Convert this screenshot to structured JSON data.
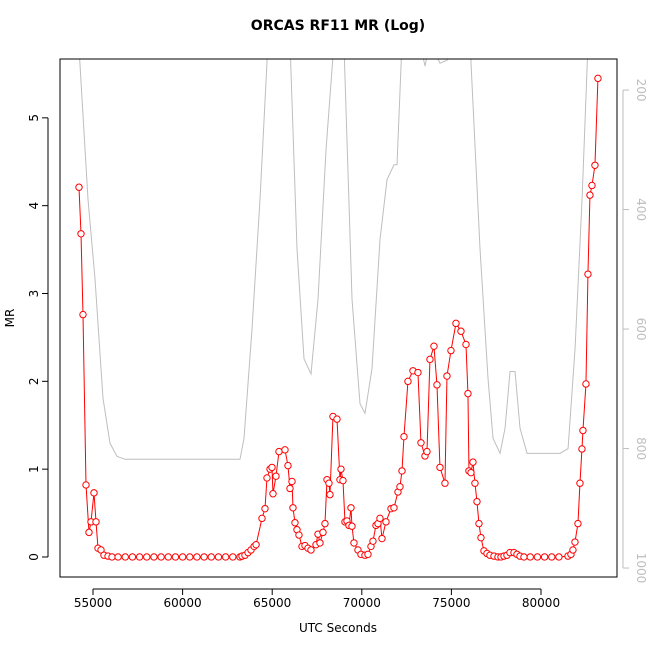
{
  "chart_data": {
    "type": "line",
    "title": "ORCAS RF11 MR (Log)",
    "xlabel": "UTC Seconds",
    "ylabel": "MR",
    "xlim": [
      53158,
      84241
    ],
    "xticks": [
      55000,
      60000,
      65000,
      70000,
      75000,
      80000
    ],
    "ylim": [
      -0.228,
      5.67
    ],
    "yticks": [
      0,
      1,
      2,
      3,
      4,
      5
    ],
    "y2lim": [
      1015,
      148
    ],
    "y2ticks": [
      200,
      400,
      600,
      800,
      1000
    ],
    "series": [
      {
        "color": "#ff0000",
        "marker": "circle",
        "x": [
          54218,
          54330,
          54441,
          54609,
          54776,
          54888,
          55055,
          55167,
          55279,
          55446,
          55613,
          55837,
          56060,
          56400,
          56800,
          57200,
          57600,
          58000,
          58400,
          58800,
          59200,
          59600,
          60000,
          60400,
          60800,
          61200,
          61600,
          62000,
          62400,
          62800,
          63200,
          63314,
          63481,
          63649,
          63816,
          63990,
          64100,
          64430,
          64597,
          64709,
          64876,
          64988,
          65043,
          65211,
          65378,
          65713,
          65880,
          65992,
          66104,
          66159,
          66271,
          66383,
          66494,
          66662,
          66829,
          66996,
          67164,
          67443,
          67554,
          67666,
          67833,
          67945,
          68057,
          68168,
          68224,
          68391,
          68615,
          68782,
          68838,
          68949,
          69061,
          69173,
          69284,
          69396,
          69452,
          69563,
          69786,
          69954,
          70177,
          70344,
          70512,
          70623,
          70791,
          70902,
          71014,
          71126,
          71349,
          71628,
          71795,
          72018,
          72130,
          72242,
          72353,
          72576,
          72855,
          73134,
          73302,
          73525,
          73637,
          73804,
          74027,
          74195,
          74362,
          74641,
          74753,
          74976,
          75255,
          75534,
          75813,
          75924,
          75980,
          76092,
          76203,
          76315,
          76427,
          76538,
          76650,
          76817,
          76985,
          77152,
          77375,
          77598,
          77766,
          77933,
          78101,
          78268,
          78491,
          78659,
          78826,
          79049,
          79400,
          79800,
          80200,
          80600,
          81000,
          81504,
          81672,
          81783,
          81895,
          82062,
          82174,
          82286,
          82341,
          82509,
          82620,
          82732,
          82844,
          83011,
          83178
        ],
        "values": [
          4.21,
          3.68,
          2.76,
          0.82,
          0.28,
          0.4,
          0.73,
          0.4,
          0.1,
          0.08,
          0.02,
          0.01,
          0,
          0,
          0,
          0,
          0,
          0,
          0,
          0,
          0,
          0,
          0,
          0,
          0,
          0,
          0,
          0,
          0,
          0,
          0,
          0.01,
          0.02,
          0.05,
          0.08,
          0.12,
          0.14,
          0.44,
          0.55,
          0.9,
          1.0,
          1.02,
          0.72,
          0.92,
          1.2,
          1.22,
          1.04,
          0.78,
          0.86,
          0.56,
          0.39,
          0.31,
          0.25,
          0.12,
          0.13,
          0.1,
          0.08,
          0.14,
          0.26,
          0.16,
          0.28,
          0.38,
          0.88,
          0.84,
          0.71,
          1.6,
          1.57,
          0.88,
          1.0,
          0.87,
          0.4,
          0.41,
          0.36,
          0.56,
          0.35,
          0.16,
          0.08,
          0.03,
          0.02,
          0.03,
          0.12,
          0.18,
          0.36,
          0.38,
          0.44,
          0.21,
          0.4,
          0.55,
          0.56,
          0.74,
          0.8,
          0.98,
          1.37,
          2.0,
          2.12,
          2.1,
          1.3,
          1.15,
          1.2,
          2.25,
          2.4,
          1.96,
          1.02,
          0.84,
          2.06,
          2.35,
          2.66,
          2.57,
          2.42,
          1.86,
          0.98,
          0.96,
          1.08,
          0.84,
          0.63,
          0.38,
          0.22,
          0.07,
          0.04,
          0.02,
          0.01,
          0,
          0,
          0.01,
          0.02,
          0.05,
          0.05,
          0.03,
          0.01,
          0,
          0,
          0,
          0,
          0,
          0,
          0.01,
          0.03,
          0.08,
          0.17,
          0.38,
          0.84,
          1.23,
          1.44,
          1.97,
          3.22,
          4.12,
          4.23,
          4.46,
          5.45
        ]
      },
      {
        "color": "#bebebe",
        "axis": "y2",
        "x": [
          54200,
          54721,
          55111,
          55558,
          55948,
          56339,
          56785,
          60970,
          63203,
          63426,
          63873,
          64319,
          64766,
          65993,
          66384,
          66775,
          67165,
          67556,
          68003,
          68449,
          69000,
          69454,
          69900,
          70179,
          70569,
          71016,
          71407,
          71797,
          71964,
          72243,
          73250,
          73527,
          73806,
          74364,
          74755,
          75200,
          76038,
          76597,
          77044,
          77323,
          77714,
          77993,
          78272,
          78551,
          78830,
          79221,
          81063,
          81510,
          81900,
          82291,
          82626,
          83178
        ],
        "values": [
          120,
          383,
          516,
          716,
          791,
          813,
          818,
          818,
          818,
          783,
          600,
          383,
          120,
          120,
          466,
          650,
          675,
          550,
          300,
          120,
          120,
          550,
          725,
          741,
          666,
          450,
          350,
          325,
          325,
          120,
          120,
          160,
          120,
          155,
          150,
          120,
          120,
          466,
          683,
          783,
          808,
          766,
          671,
          671,
          766,
          808,
          808,
          800,
          633,
          383,
          120,
          120
        ]
      }
    ]
  }
}
